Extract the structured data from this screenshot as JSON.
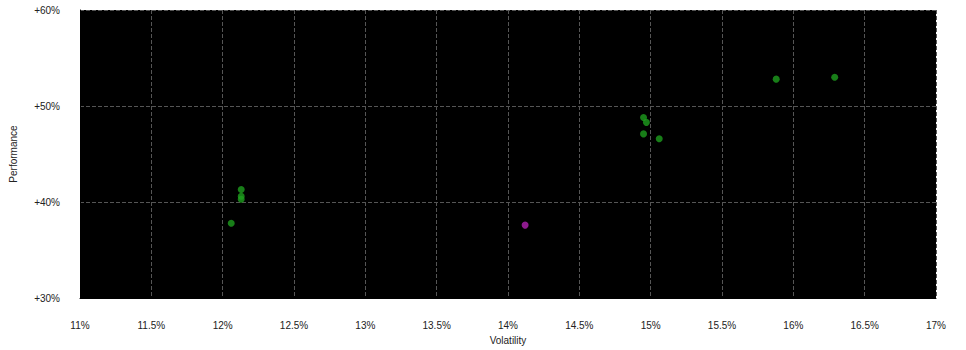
{
  "chart_data": {
    "type": "scatter",
    "x_label": "Volatility",
    "y_label": "Performance",
    "series": [
      {
        "color": "#1e9e1e",
        "marker": "circle",
        "x": [
          12.13,
          12.13,
          12.13,
          12.06,
          14.95,
          14.97,
          14.95,
          15.06,
          15.88,
          16.29
        ],
        "values": [
          41.3,
          40.6,
          40.3,
          37.8,
          48.8,
          48.3,
          47.1,
          46.6,
          52.8,
          53.0
        ]
      },
      {
        "color": "#b020b0",
        "marker": "circle",
        "x": [
          14.12
        ],
        "values": [
          37.6
        ]
      }
    ],
    "xlim": [
      11,
      17
    ],
    "xticks": [
      {
        "value": 11,
        "label": "11%"
      },
      {
        "value": 11.5,
        "label": "11.5%"
      },
      {
        "value": 12,
        "label": "12%"
      },
      {
        "value": 12.5,
        "label": "12.5%"
      },
      {
        "value": 13,
        "label": "13%"
      },
      {
        "value": 13.5,
        "label": "13.5%"
      },
      {
        "value": 14,
        "label": "14%"
      },
      {
        "value": 14.5,
        "label": "14.5%"
      },
      {
        "value": 15,
        "label": "15%"
      },
      {
        "value": 15.5,
        "label": "15.5%"
      },
      {
        "value": 16,
        "label": "16%"
      },
      {
        "value": 16.5,
        "label": "16.5%"
      },
      {
        "value": 17,
        "label": "17%"
      }
    ],
    "ylim": [
      30,
      60
    ],
    "yticks": [
      {
        "value": 30,
        "label": "+30%"
      },
      {
        "value": 40,
        "label": "+40%"
      },
      {
        "value": 50,
        "label": "+50%"
      },
      {
        "value": 60,
        "label": "+60%"
      }
    ],
    "grid": true
  }
}
